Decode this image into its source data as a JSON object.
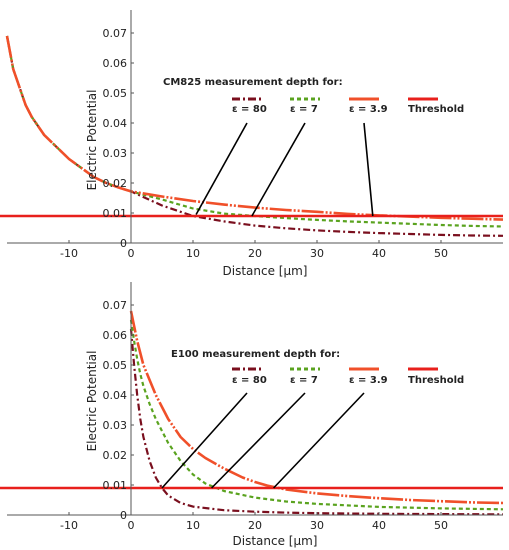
{
  "colors": {
    "eps80": "#7a0f1e",
    "eps7": "#5aa31f",
    "eps39": "#f0502a",
    "threshold": "#e8201c",
    "axis": "#555555",
    "pointer": "#000000"
  },
  "chart_data": [
    {
      "type": "line",
      "title": "",
      "legend_title": "CM825 measurement depth for:",
      "legend_placement": "top-right",
      "xlabel": "Distance [µm]",
      "ylabel": "Electric Potential",
      "xlim": [
        -20,
        60
      ],
      "ylim": [
        0,
        0.075
      ],
      "xticks": [
        -10,
        0,
        10,
        20,
        30,
        40,
        50
      ],
      "xtick_labels": [
        "-10",
        "0",
        "10",
        "20",
        "30",
        "40",
        "50"
      ],
      "yticks": [
        0,
        0.01,
        0.02,
        0.03,
        0.04,
        0.05,
        0.06,
        0.07
      ],
      "ytick_labels": [
        "0",
        "0.01",
        "0.02",
        "0.03",
        "0.04",
        "0.05",
        "0.06",
        "0.07"
      ],
      "grid": false,
      "threshold": 0.009,
      "series": [
        {
          "name": "ε = 80",
          "style": "dashdot",
          "color_key": "eps80",
          "x": [
            -20,
            -19,
            -18,
            -17,
            -16,
            -14,
            -12,
            -10,
            -8,
            -6,
            -4,
            -2,
            0,
            5,
            10,
            15,
            20,
            25,
            30,
            35,
            40,
            45,
            50,
            55,
            60
          ],
          "y": [
            0.069,
            0.058,
            0.052,
            0.046,
            0.042,
            0.036,
            0.032,
            0.028,
            0.025,
            0.022,
            0.02,
            0.0185,
            0.0172,
            0.0125,
            0.009,
            0.0072,
            0.0058,
            0.0049,
            0.0042,
            0.0037,
            0.0033,
            0.003,
            0.0027,
            0.0025,
            0.0024
          ]
        },
        {
          "name": "ε = 7",
          "style": "dashed",
          "color_key": "eps7",
          "x": [
            -20,
            -19,
            -18,
            -17,
            -16,
            -14,
            -12,
            -10,
            -8,
            -6,
            -4,
            -2,
            0,
            5,
            10,
            15,
            20,
            25,
            30,
            35,
            40,
            45,
            50,
            55,
            60
          ],
          "y": [
            0.069,
            0.058,
            0.052,
            0.046,
            0.042,
            0.036,
            0.032,
            0.028,
            0.025,
            0.022,
            0.02,
            0.0185,
            0.0172,
            0.0145,
            0.0115,
            0.0098,
            0.009,
            0.0083,
            0.0077,
            0.0072,
            0.0068,
            0.0064,
            0.006,
            0.0057,
            0.0055
          ]
        },
        {
          "name": "ε = 3.9",
          "style": "mixed",
          "color_key": "eps39",
          "x": [
            -20,
            -19,
            -18,
            -17,
            -16,
            -14,
            -12,
            -10,
            -8,
            -6,
            -4,
            -2,
            0,
            5,
            10,
            15,
            20,
            25,
            30,
            35,
            40,
            45,
            50,
            55,
            60
          ],
          "y": [
            0.069,
            0.058,
            0.052,
            0.046,
            0.042,
            0.036,
            0.032,
            0.028,
            0.025,
            0.022,
            0.02,
            0.0185,
            0.0172,
            0.0155,
            0.014,
            0.0128,
            0.0118,
            0.011,
            0.0104,
            0.0097,
            0.0092,
            0.0088,
            0.0084,
            0.0081,
            0.0078
          ]
        }
      ],
      "legend": [
        "ε = 80",
        "ε = 7",
        "ε = 3.9",
        "Threshold"
      ],
      "pointers": [
        {
          "series": "ε = 80",
          "x": 10.5,
          "y": 0.0095
        },
        {
          "series": "ε = 7",
          "x": 19.5,
          "y": 0.009
        },
        {
          "series": "ε = 3.9",
          "x": 39,
          "y": 0.009
        }
      ]
    },
    {
      "type": "line",
      "title": "",
      "legend_title": "E100 measurement depth for:",
      "legend_placement": "top-right",
      "xlabel": "Distance [µm]",
      "ylabel": "Electric Potential",
      "xlim": [
        -20,
        60
      ],
      "ylim": [
        0,
        0.075
      ],
      "xticks": [
        -10,
        0,
        10,
        20,
        30,
        40,
        50
      ],
      "xtick_labels": [
        "-10",
        "0",
        "10",
        "20",
        "30",
        "40",
        "50"
      ],
      "yticks": [
        0,
        0.01,
        0.02,
        0.03,
        0.04,
        0.05,
        0.06,
        0.07
      ],
      "ytick_labels": [
        "0",
        "0.01",
        "0.02",
        "0.03",
        "0.04",
        "0.05",
        "0.06",
        "0.07"
      ],
      "grid": false,
      "threshold": 0.009,
      "series": [
        {
          "name": "ε = 80",
          "style": "dashdot",
          "color_key": "eps80",
          "x": [
            0,
            0.5,
            1,
            1.5,
            2,
            3,
            4,
            5,
            6,
            8,
            10,
            15,
            20,
            25,
            30,
            40,
            50,
            60
          ],
          "y": [
            0.062,
            0.05,
            0.04,
            0.032,
            0.026,
            0.018,
            0.0125,
            0.009,
            0.0065,
            0.004,
            0.0028,
            0.0016,
            0.0011,
            0.0008,
            0.0006,
            0.0004,
            0.0003,
            0.0002
          ]
        },
        {
          "name": "ε = 7",
          "style": "dashed",
          "color_key": "eps7",
          "x": [
            0,
            0.5,
            1,
            1.5,
            2,
            3,
            4,
            5,
            6,
            8,
            10,
            12,
            15,
            20,
            25,
            30,
            40,
            50,
            60
          ],
          "y": [
            0.065,
            0.058,
            0.052,
            0.047,
            0.043,
            0.037,
            0.032,
            0.028,
            0.024,
            0.018,
            0.0135,
            0.0105,
            0.008,
            0.0058,
            0.0045,
            0.0037,
            0.0027,
            0.0022,
            0.0019
          ]
        },
        {
          "name": "ε = 3.9",
          "style": "mixed",
          "color_key": "eps39",
          "x": [
            0,
            0.5,
            1,
            1.5,
            2,
            3,
            4,
            5,
            6,
            8,
            10,
            12,
            15,
            18,
            20,
            22,
            25,
            30,
            35,
            40,
            45,
            50,
            55,
            60
          ],
          "y": [
            0.068,
            0.063,
            0.058,
            0.054,
            0.05,
            0.045,
            0.04,
            0.036,
            0.032,
            0.026,
            0.022,
            0.019,
            0.0155,
            0.0125,
            0.011,
            0.0098,
            0.0085,
            0.0072,
            0.0063,
            0.0056,
            0.005,
            0.0046,
            0.0042,
            0.004
          ]
        }
      ],
      "legend": [
        "ε = 80",
        "ε = 7",
        "ε = 3.9",
        "Threshold"
      ],
      "pointers": [
        {
          "series": "ε = 80",
          "x": 5,
          "y": 0.009
        },
        {
          "series": "ε = 7",
          "x": 13,
          "y": 0.009
        },
        {
          "series": "ε = 3.9",
          "x": 23,
          "y": 0.009
        }
      ]
    }
  ]
}
